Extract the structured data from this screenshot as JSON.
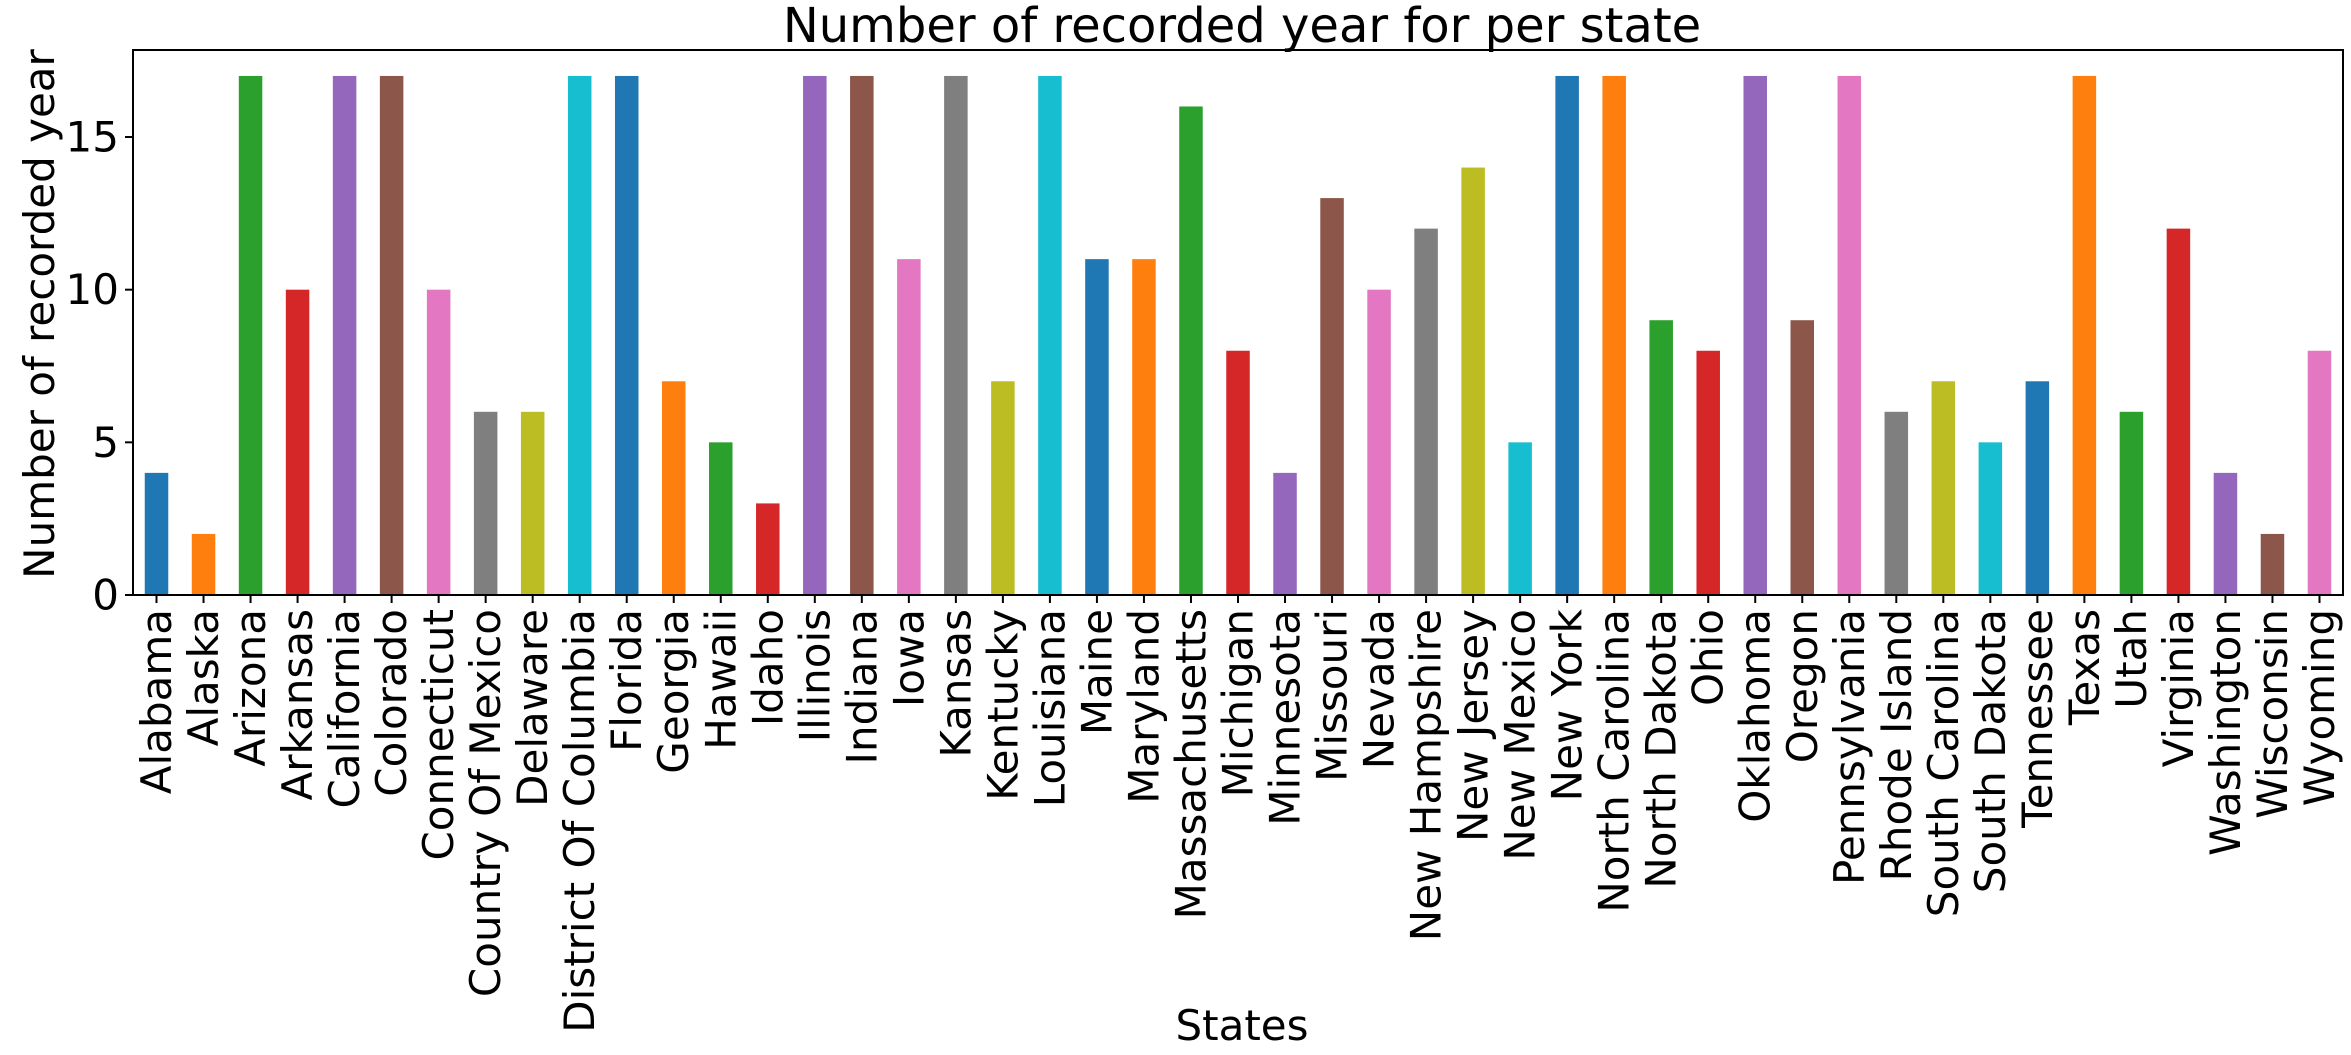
{
  "chart_data": {
    "type": "bar",
    "title": "Number of recorded year for per state",
    "xlabel": "States",
    "ylabel": "Number of recorded year",
    "ylim": [
      0,
      17.85
    ],
    "yticks": [
      0,
      5,
      10,
      15
    ],
    "grid": false,
    "legend": "none",
    "palette": [
      "#1f77b4",
      "#ff7f0e",
      "#2ca02c",
      "#d62728",
      "#9467bd",
      "#8c564b",
      "#e377c2",
      "#7f7f7f",
      "#bcbd22",
      "#17becf"
    ],
    "categories": [
      "Alabama",
      "Alaska",
      "Arizona",
      "Arkansas",
      "California",
      "Colorado",
      "Connecticut",
      "Country Of Mexico",
      "Delaware",
      "District Of Columbia",
      "Florida",
      "Georgia",
      "Hawaii",
      "Idaho",
      "Illinois",
      "Indiana",
      "Iowa",
      "Kansas",
      "Kentucky",
      "Louisiana",
      "Maine",
      "Maryland",
      "Massachusetts",
      "Michigan",
      "Minnesota",
      "Missouri",
      "Nevada",
      "New Hampshire",
      "New Jersey",
      "New Mexico",
      "New York",
      "North Carolina",
      "North Dakota",
      "Ohio",
      "Oklahoma",
      "Oregon",
      "Pennsylvania",
      "Rhode Island",
      "South Carolina",
      "South Dakota",
      "Tennessee",
      "Texas",
      "Utah",
      "Virginia",
      "Washington",
      "Wisconsin",
      "Wyoming"
    ],
    "values": [
      4,
      2,
      17,
      10,
      17,
      17,
      10,
      6,
      6,
      17,
      17,
      7,
      5,
      3,
      17,
      17,
      11,
      17,
      7,
      17,
      11,
      11,
      16,
      8,
      4,
      13,
      10,
      12,
      14,
      5,
      17,
      17,
      9,
      8,
      17,
      9,
      17,
      6,
      7,
      5,
      7,
      17,
      6,
      12,
      4,
      2,
      8
    ]
  }
}
